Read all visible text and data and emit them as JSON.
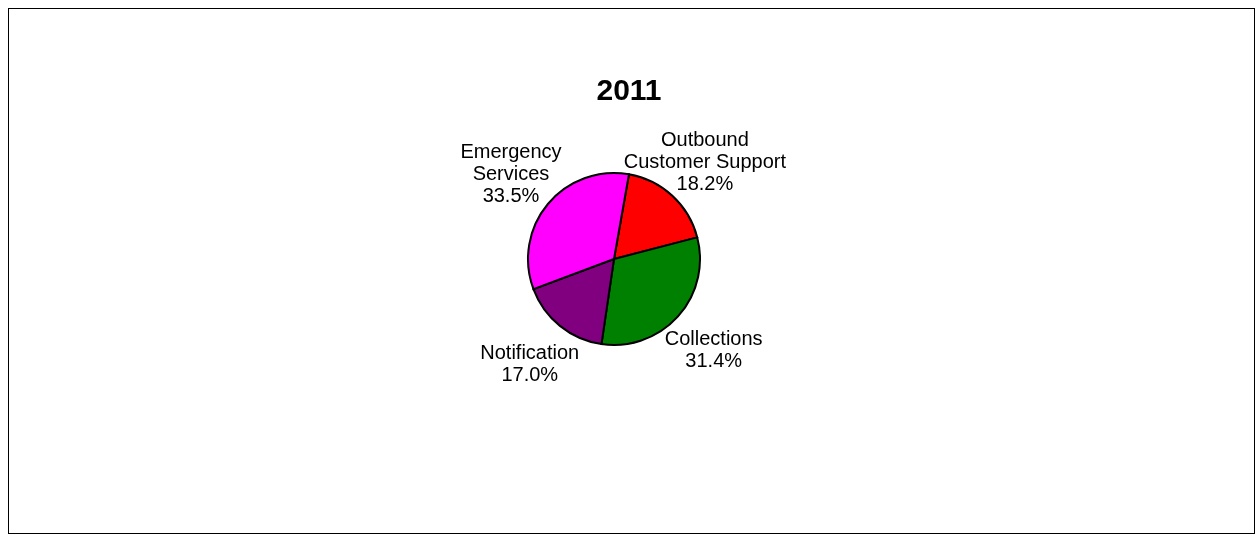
{
  "chart_data": {
    "type": "pie",
    "title": "2011",
    "categories": [
      "Outbound Customer Support",
      "Collections",
      "Notification",
      "Emergency Services"
    ],
    "values": [
      18.2,
      31.4,
      17.0,
      33.5
    ],
    "value_labels": [
      "18.2%",
      "31.4%",
      "17.0%",
      "33.5%"
    ],
    "colors": [
      "#ff0000",
      "#008000",
      "#800080",
      "#ff00ff"
    ]
  }
}
